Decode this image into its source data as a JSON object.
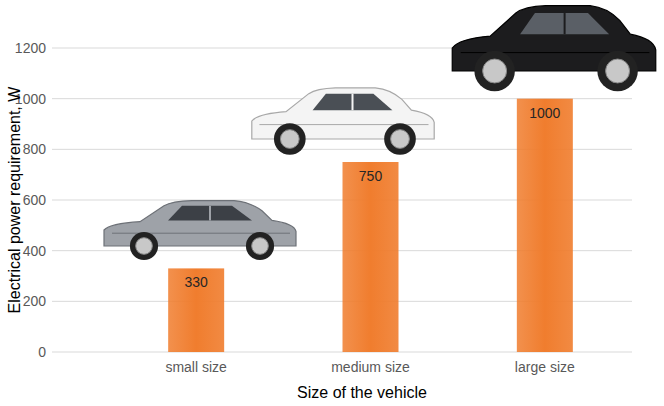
{
  "chart_data": {
    "type": "bar",
    "y_label": "Electrical power requirement, W",
    "x_label": "Size of the vehicle",
    "categories": [
      "small size",
      "medium size",
      "large size"
    ],
    "values": [
      330,
      750,
      1000
    ],
    "color": "#f07d2e",
    "ylim": [
      0,
      1200
    ],
    "yticks": [
      0,
      200,
      400,
      600,
      800,
      1000,
      1200
    ],
    "grid": true,
    "data_labels": true
  }
}
